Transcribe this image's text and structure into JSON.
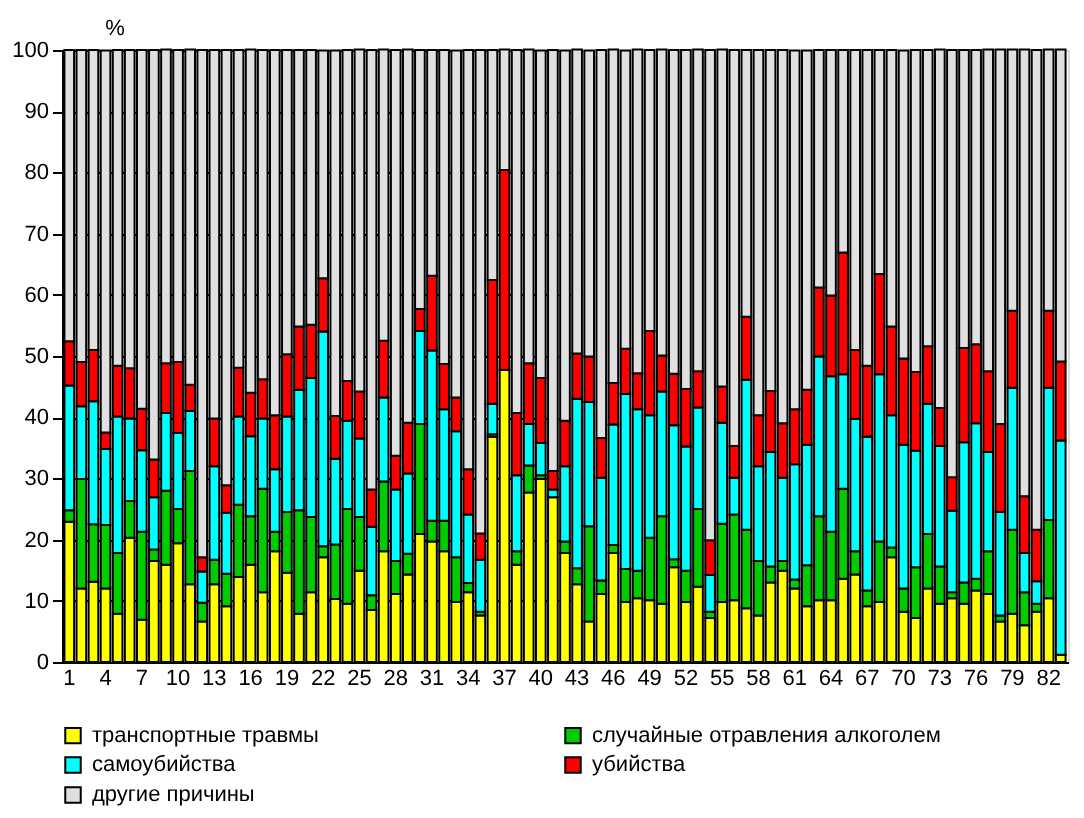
{
  "chart_data": {
    "type": "bar",
    "stacked": true,
    "ylabel": "%",
    "ylim": [
      0,
      100
    ],
    "yticks": [
      0,
      10,
      20,
      30,
      40,
      50,
      60,
      70,
      80,
      90,
      100
    ],
    "grid": "y",
    "legend": "bottom",
    "categories": [
      "1",
      null,
      null,
      "4",
      null,
      null,
      "7",
      null,
      null,
      "10",
      null,
      null,
      "13",
      null,
      null,
      "16",
      null,
      null,
      "19",
      null,
      null,
      "22",
      null,
      null,
      "25",
      null,
      null,
      "28",
      null,
      null,
      "31",
      null,
      null,
      "34",
      null,
      null,
      "37",
      null,
      null,
      "40",
      null,
      null,
      "43",
      null,
      null,
      "46",
      null,
      null,
      "49",
      null,
      null,
      "52",
      null,
      null,
      "55",
      null,
      null,
      "58",
      null,
      null,
      "61",
      null,
      null,
      "64",
      null,
      null,
      "67",
      null,
      null,
      "70",
      null,
      null,
      "73",
      null,
      null,
      "76",
      null,
      null,
      "79",
      null,
      null,
      "82",
      null
    ],
    "series": [
      {
        "name": "транспортные травмы",
        "color": "#ffff00",
        "values": [
          22.9,
          12.0,
          13.1,
          12.0,
          7.9,
          20.3,
          6.9,
          16.5,
          15.9,
          19.4,
          12.7,
          6.6,
          12.7,
          9.1,
          13.9,
          15.9,
          11.4,
          18.1,
          14.6,
          7.9,
          11.4,
          17.1,
          10.3,
          9.5,
          14.9,
          8.5,
          18.1,
          11.1,
          14.3,
          20.9,
          19.7,
          18.1,
          9.8,
          11.4,
          7.6,
          36.8,
          47.7,
          15.9,
          27.7,
          29.9,
          26.9,
          17.8,
          12.7,
          6.6,
          11.1,
          17.8,
          9.8,
          10.4,
          10.1,
          9.5,
          15.5,
          9.8,
          12.3,
          7.2,
          9.8,
          10.1,
          8.8,
          7.6,
          13.0,
          14.9,
          12.0,
          9.1,
          10.1,
          10.1,
          13.6,
          14.3,
          9.1,
          9.8,
          17.1,
          8.2,
          7.2,
          12.0,
          9.5,
          10.4,
          9.5,
          11.7,
          11.1,
          6.6,
          7.9,
          6.0,
          8.2,
          10.4,
          1.2
        ]
      },
      {
        "name": "случайные отравления алкоголем",
        "color": "#00cc00",
        "values": [
          1.9,
          17.9,
          9.4,
          10.4,
          9.9,
          6.0,
          14.4,
          1.9,
          12.1,
          5.6,
          18.5,
          3.1,
          4.0,
          5.3,
          11.8,
          7.9,
          16.9,
          3.2,
          9.9,
          16.9,
          12.3,
          1.8,
          8.9,
          15.5,
          8.8,
          2.4,
          11.4,
          5.4,
          3.4,
          18.0,
          3.4,
          5.0,
          7.3,
          1.5,
          0.6,
          0.4,
          0,
          2.2,
          4.4,
          0.6,
          0,
          1.9,
          2.6,
          15.6,
          2.2,
          1.3,
          5.4,
          4.5,
          10.2,
          14.3,
          1.3,
          5.1,
          12.7,
          1.0,
          12.8,
          14.0,
          12.8,
          8.9,
          2.6,
          1.6,
          1.5,
          6.7,
          13.7,
          11.2,
          14.7,
          3.8,
          2.6,
          9.9,
          1.6,
          3.8,
          8.3,
          8.9,
          6.1,
          1.0,
          3.5,
          1.9,
          7.0,
          1.0,
          13.7,
          5.4,
          1.3,
          12.8,
          0
        ]
      },
      {
        "name": "самоубийства",
        "color": "#00ffff",
        "values": [
          20.4,
          11.9,
          20.1,
          12.4,
          22.3,
          13.5,
          13.3,
          8.5,
          12.7,
          12.4,
          9.8,
          5.1,
          15.3,
          10.0,
          14.4,
          13.1,
          11.5,
          10.2,
          15.6,
          19.7,
          22.7,
          35.1,
          14.0,
          14.4,
          12.8,
          11.2,
          13.7,
          11.7,
          13.1,
          15.2,
          27.8,
          18.2,
          20.6,
          11.2,
          8.5,
          5.0,
          0,
          12.4,
          6.8,
          5.3,
          1.3,
          12.3,
          27.7,
          20.3,
          16.8,
          19.7,
          28.6,
          26.4,
          20.0,
          20.4,
          21.9,
          20.3,
          16.6,
          6.0,
          16.5,
          6.0,
          24.5,
          15.5,
          18.7,
          13.6,
          18.8,
          19.7,
          26.1,
          25.4,
          18.7,
          21.6,
          25.1,
          27.3,
          21.6,
          23.5,
          19.0,
          21.3,
          19.7,
          13.3,
          22.9,
          25.4,
          16.2,
          16.9,
          23.2,
          6.4,
          3.7,
          21.6,
          35.0
        ]
      },
      {
        "name": "убийства",
        "color": "#ff0000",
        "values": [
          7.2,
          7.2,
          8.4,
          2.7,
          8.3,
          8.2,
          6.8,
          6.2,
          8.1,
          11.6,
          4.3,
          2.3,
          7.8,
          4.5,
          8.0,
          7.1,
          6.4,
          8.8,
          10.2,
          10.3,
          8.7,
          8.7,
          7.0,
          6.5,
          7.7,
          6.1,
          9.3,
          5.5,
          8.3,
          3.6,
          12.2,
          7.4,
          5.5,
          7.4,
          4.3,
          20.2,
          32.7,
          10.2,
          9.9,
          10.6,
          3.0,
          7.4,
          7.4,
          7.4,
          6.5,
          6.8,
          7.4,
          5.9,
          13.8,
          5.9,
          8.4,
          9.4,
          5.9,
          5.7,
          5.9,
          5.2,
          10.3,
          8.3,
          10.0,
          8.9,
          9.0,
          9.0,
          11.3,
          13.2,
          19.9,
          11.3,
          11.6,
          16.4,
          14.5,
          14.1,
          12.9,
          9.4,
          6.2,
          5.5,
          15.4,
          12.9,
          13.2,
          14.4,
          12.6,
          9.3,
          8.4,
          12.6,
          12.9
        ]
      },
      {
        "name": "другие причины",
        "color": "#e0e0e0",
        "values": [
          47.6,
          51.0,
          49.0,
          62.4,
          51.6,
          52.0,
          58.6,
          66.9,
          51.3,
          51.0,
          54.8,
          82.9,
          60.2,
          71.1,
          51.9,
          56.1,
          53.8,
          59.7,
          49.7,
          45.2,
          44.9,
          37.2,
          59.7,
          54.1,
          55.9,
          71.8,
          47.6,
          66.3,
          61.0,
          42.3,
          36.9,
          51.3,
          56.7,
          68.5,
          79.0,
          37.6,
          19.7,
          59.3,
          51.3,
          53.5,
          68.8,
          60.5,
          49.7,
          50.0,
          63.4,
          54.5,
          48.7,
          52.9,
          45.9,
          50.0,
          52.9,
          55.4,
          52.6,
          80.1,
          55.1,
          64.7,
          43.6,
          59.7,
          55.7,
          61.0,
          58.6,
          55.4,
          38.8,
          40.1,
          33.1,
          49.0,
          51.6,
          36.6,
          45.2,
          50.3,
          52.6,
          48.4,
          58.6,
          69.8,
          48.7,
          48.1,
          52.6,
          61.2,
          42.7,
          73.0,
          78.4,
          42.7,
          51.0
        ]
      }
    ]
  }
}
